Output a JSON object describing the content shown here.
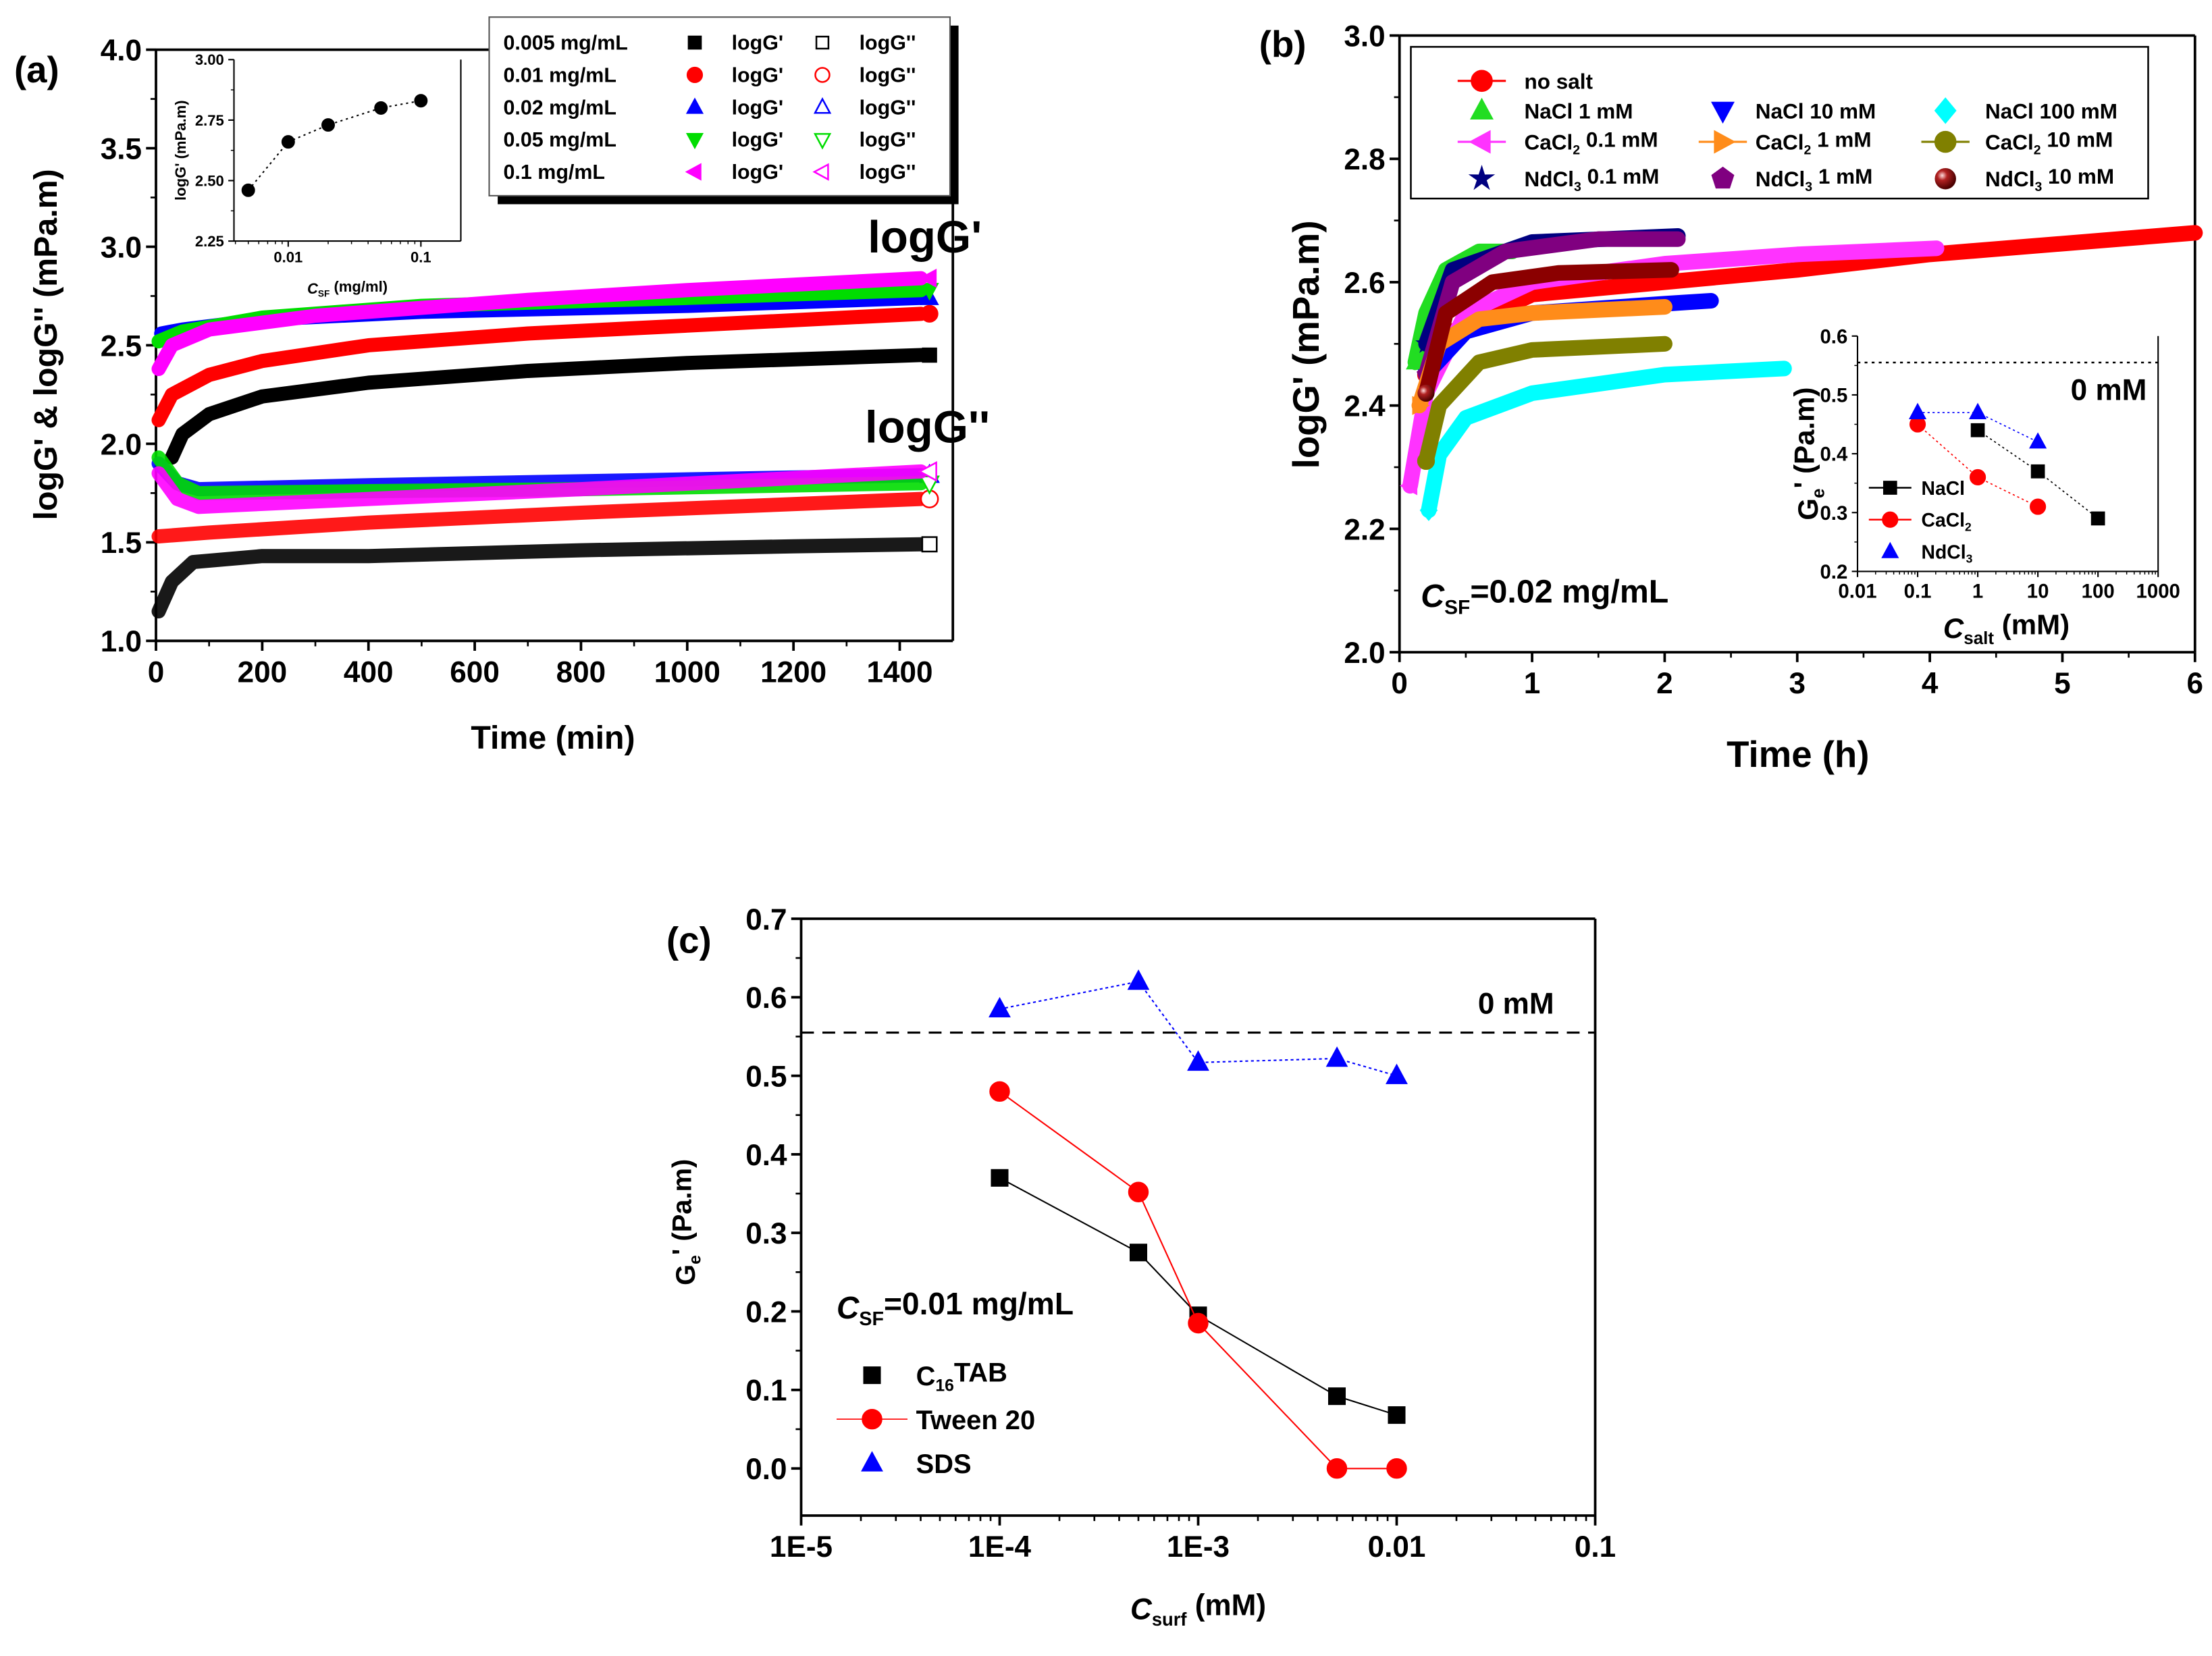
{
  "chart_data": [
    {
      "id": "a",
      "type": "line",
      "panel_label": "(a)",
      "xlabel": "Time (min)",
      "ylabel": "logG' & logG'' (mPa.m)",
      "xlim": [
        0,
        1500
      ],
      "ylim": [
        1.0,
        4.0
      ],
      "xticks": [
        0,
        200,
        400,
        600,
        800,
        1000,
        1200,
        1400
      ],
      "xtick_labels": [
        "0",
        "200",
        "400",
        "600",
        "800",
        "1000",
        "1200",
        "1400"
      ],
      "yticks": [
        1.0,
        1.5,
        2.0,
        2.5,
        3.0,
        3.5,
        4.0
      ],
      "ytick_labels": [
        "1.0",
        "1.5",
        "2.0",
        "2.5",
        "3.0",
        "3.5",
        "4.0"
      ],
      "annotations": [
        "logG'",
        "logG''"
      ],
      "legend_position": "top-right",
      "series": [
        {
          "name": "0.005 mg/mL",
          "color": "#000000",
          "marker": "square",
          "G1_label": "logG'",
          "G2_label": "logG''",
          "logG1": [
            [
              30,
              1.93
            ],
            [
              50,
              2.05
            ],
            [
              100,
              2.15
            ],
            [
              200,
              2.24
            ],
            [
              400,
              2.31
            ],
            [
              700,
              2.37
            ],
            [
              1000,
              2.41
            ],
            [
              1440,
              2.45
            ]
          ],
          "logG2": [
            [
              5,
              1.15
            ],
            [
              30,
              1.3
            ],
            [
              70,
              1.4
            ],
            [
              200,
              1.43
            ],
            [
              400,
              1.43
            ],
            [
              800,
              1.46
            ],
            [
              1200,
              1.48
            ],
            [
              1440,
              1.49
            ]
          ]
        },
        {
          "name": "0.01 mg/mL",
          "color": "#ff0000",
          "marker": "circle",
          "G1_label": "logG'",
          "G2_label": "logG''",
          "logG1": [
            [
              5,
              2.12
            ],
            [
              30,
              2.25
            ],
            [
              100,
              2.35
            ],
            [
              200,
              2.42
            ],
            [
              400,
              2.5
            ],
            [
              700,
              2.56
            ],
            [
              1000,
              2.6
            ],
            [
              1440,
              2.66
            ]
          ],
          "logG2": [
            [
              5,
              1.53
            ],
            [
              100,
              1.55
            ],
            [
              400,
              1.6
            ],
            [
              800,
              1.65
            ],
            [
              1440,
              1.72
            ]
          ]
        },
        {
          "name": "0.02 mg/mL",
          "color": "#0000ff",
          "marker": "up",
          "G1_label": "logG'",
          "G2_label": "logG''",
          "logG1": [
            [
              10,
              2.56
            ],
            [
              50,
              2.58
            ],
            [
              200,
              2.63
            ],
            [
              500,
              2.67
            ],
            [
              1000,
              2.7
            ],
            [
              1440,
              2.74
            ]
          ],
          "logG2": [
            [
              5,
              1.9
            ],
            [
              40,
              1.8
            ],
            [
              80,
              1.77
            ],
            [
              400,
              1.79
            ],
            [
              800,
              1.81
            ],
            [
              1440,
              1.84
            ]
          ]
        },
        {
          "name": "0.05 mg/mL",
          "color": "#00dd00",
          "marker": "down",
          "G1_label": "logG'",
          "G2_label": "logG''",
          "logG1": [
            [
              5,
              2.52
            ],
            [
              50,
              2.57
            ],
            [
              200,
              2.64
            ],
            [
              500,
              2.7
            ],
            [
              1000,
              2.74
            ],
            [
              1440,
              2.78
            ]
          ],
          "logG2": [
            [
              5,
              1.93
            ],
            [
              40,
              1.8
            ],
            [
              80,
              1.75
            ],
            [
              400,
              1.76
            ],
            [
              800,
              1.77
            ],
            [
              1440,
              1.8
            ]
          ]
        },
        {
          "name": "0.1 mg/mL",
          "color": "#ff00ff",
          "marker": "left",
          "G1_label": "logG'",
          "G2_label": "logG''",
          "logG1": [
            [
              5,
              2.38
            ],
            [
              30,
              2.5
            ],
            [
              100,
              2.58
            ],
            [
              300,
              2.65
            ],
            [
              700,
              2.73
            ],
            [
              1000,
              2.78
            ],
            [
              1440,
              2.84
            ]
          ],
          "logG2": [
            [
              5,
              1.85
            ],
            [
              40,
              1.72
            ],
            [
              80,
              1.68
            ],
            [
              400,
              1.72
            ],
            [
              800,
              1.77
            ],
            [
              1440,
              1.86
            ]
          ]
        }
      ]
    },
    {
      "id": "a-inset",
      "type": "scatter",
      "xlabel": {
        "base": "C",
        "italic": true,
        "sub": "SF",
        "rest": " (mg/ml)"
      },
      "ylabel": "logG' (mPa.m)",
      "xscale": "log",
      "xlim": [
        0.0039,
        0.2
      ],
      "ylim": [
        2.25,
        3.0
      ],
      "xticks": [
        0.01,
        0.1
      ],
      "xtick_labels": [
        "0.01",
        "0.1"
      ],
      "yticks": [
        2.25,
        2.5,
        2.75,
        3.0
      ],
      "ytick_labels": [
        "2.25",
        "2.50",
        "2.75",
        "3.00"
      ],
      "x": [
        0.005,
        0.01,
        0.02,
        0.05,
        0.1
      ],
      "y": [
        2.46,
        2.66,
        2.73,
        2.8,
        2.83
      ],
      "color": "#000000"
    },
    {
      "id": "b",
      "type": "line",
      "panel_label": "(b)",
      "xlabel": "Time (h)",
      "ylabel": "logG' (mPa.m)",
      "xlim": [
        0,
        6
      ],
      "ylim": [
        2.0,
        3.0
      ],
      "xticks": [
        0,
        1,
        2,
        3,
        4,
        5,
        6
      ],
      "xtick_labels": [
        "0",
        "1",
        "2",
        "3",
        "4",
        "5",
        "6"
      ],
      "yticks": [
        2.0,
        2.2,
        2.4,
        2.6,
        2.8,
        3.0
      ],
      "ytick_labels": [
        "2.0",
        "2.2",
        "2.4",
        "2.6",
        "2.8",
        "3.0"
      ],
      "annotation": {
        "base": "C",
        "italic": true,
        "sub": "SF",
        "rest": "=0.02 mg/mL"
      },
      "legend_position": "top",
      "series": [
        {
          "name": {
            "base": "no salt"
          },
          "color": "#ff0000",
          "marker": "circle",
          "line": true,
          "points": [
            [
              0.2,
              2.45
            ],
            [
              0.4,
              2.52
            ],
            [
              1,
              2.58
            ],
            [
              2,
              2.6
            ],
            [
              3,
              2.62
            ],
            [
              4,
              2.645
            ],
            [
              6,
              2.68
            ]
          ]
        },
        {
          "name": {
            "base": "NaCl 1 mM"
          },
          "color": "#22dd22",
          "marker": "up",
          "line": false,
          "points": [
            [
              0.12,
              2.47
            ],
            [
              0.2,
              2.55
            ],
            [
              0.35,
              2.62
            ],
            [
              0.6,
              2.65
            ],
            [
              0.85,
              2.65
            ]
          ]
        },
        {
          "name": {
            "base": "NaCl 10 mM"
          },
          "color": "#0000ff",
          "marker": "down",
          "line": false,
          "points": [
            [
              0.2,
              2.45
            ],
            [
              0.5,
              2.52
            ],
            [
              1,
              2.55
            ],
            [
              2,
              2.565
            ],
            [
              2.35,
              2.57
            ]
          ]
        },
        {
          "name": {
            "base": "NaCl 100 mM"
          },
          "color": "#00ffff",
          "marker": "diamond",
          "line": false,
          "points": [
            [
              0.22,
              2.23
            ],
            [
              0.3,
              2.32
            ],
            [
              0.5,
              2.38
            ],
            [
              1,
              2.42
            ],
            [
              2,
              2.45
            ],
            [
              2.9,
              2.46
            ]
          ]
        },
        {
          "name": {
            "base": "CaCl",
            "sub": "2",
            "rest": " 0.1 mM"
          },
          "color": "#ff33ff",
          "marker": "left",
          "line": true,
          "points": [
            [
              0.08,
              2.27
            ],
            [
              0.2,
              2.42
            ],
            [
              0.5,
              2.55
            ],
            [
              1,
              2.6
            ],
            [
              2,
              2.63
            ],
            [
              3,
              2.645
            ],
            [
              4.05,
              2.655
            ]
          ]
        },
        {
          "name": {
            "base": "CaCl",
            "sub": "2",
            "rest": " 1 mM"
          },
          "color": "#ff8c1a",
          "marker": "right",
          "line": true,
          "points": [
            [
              0.15,
              2.4
            ],
            [
              0.3,
              2.5
            ],
            [
              0.6,
              2.54
            ],
            [
              1,
              2.55
            ],
            [
              2,
              2.56
            ]
          ]
        },
        {
          "name": {
            "base": "CaCl",
            "sub": "2",
            "rest": " 10 mM"
          },
          "color": "#808000",
          "marker": "circle",
          "line": true,
          "points": [
            [
              0.2,
              2.31
            ],
            [
              0.3,
              2.4
            ],
            [
              0.6,
              2.47
            ],
            [
              1,
              2.49
            ],
            [
              2,
              2.5
            ]
          ]
        },
        {
          "name": {
            "base": "NdCl",
            "sub": "3",
            "rest": " 0.1 mM"
          },
          "color": "#000080",
          "marker": "star",
          "line": false,
          "points": [
            [
              0.2,
              2.5
            ],
            [
              0.4,
              2.62
            ],
            [
              1,
              2.665
            ],
            [
              2.1,
              2.675
            ]
          ]
        },
        {
          "name": {
            "base": "NdCl",
            "sub": "3",
            "rest": " 1 mM"
          },
          "color": "#800080",
          "marker": "pentagon",
          "line": false,
          "points": [
            [
              0.2,
              2.45
            ],
            [
              0.4,
              2.6
            ],
            [
              0.8,
              2.65
            ],
            [
              1.5,
              2.67
            ],
            [
              2.1,
              2.67
            ]
          ]
        },
        {
          "name": {
            "base": "NdCl",
            "sub": "3",
            "rest": " 10 mM"
          },
          "color": "#8b0000",
          "marker": "sphere",
          "line": false,
          "points": [
            [
              0.2,
              2.42
            ],
            [
              0.35,
              2.55
            ],
            [
              0.7,
              2.6
            ],
            [
              1.2,
              2.615
            ],
            [
              2.05,
              2.62
            ]
          ]
        }
      ]
    },
    {
      "id": "b-inset",
      "type": "scatter",
      "xlabel": {
        "base": "C",
        "italic": true,
        "sub": "salt",
        "rest": " (mM)"
      },
      "ylabel": {
        "base": "G",
        "sub": "e",
        "rest": "' (Pa.m)"
      },
      "xscale": "log",
      "xlim": [
        0.01,
        1000
      ],
      "ylim": [
        0.2,
        0.6
      ],
      "xticks": [
        0.01,
        0.1,
        1,
        10,
        100,
        1000
      ],
      "xtick_labels": [
        "0.01",
        "0.1",
        "1",
        "10",
        "100",
        "1000"
      ],
      "yticks": [
        0.2,
        0.3,
        0.4,
        0.5,
        0.6
      ],
      "ytick_labels": [
        "0.2",
        "0.3",
        "0.4",
        "0.5",
        "0.6"
      ],
      "reference_line": {
        "y": 0.555,
        "label": "0 mM"
      },
      "series": [
        {
          "name": {
            "base": "NaCl"
          },
          "color": "#000000",
          "marker": "square",
          "x": [
            1,
            10,
            100
          ],
          "y": [
            0.44,
            0.37,
            0.29
          ]
        },
        {
          "name": {
            "base": "CaCl",
            "sub": "2"
          },
          "color": "#ff0000",
          "marker": "circle",
          "x": [
            0.1,
            1,
            10
          ],
          "y": [
            0.45,
            0.36,
            0.31
          ]
        },
        {
          "name": {
            "base": "NdCl",
            "sub": "3"
          },
          "color": "#0000ff",
          "marker": "up",
          "x": [
            0.1,
            1,
            10
          ],
          "y": [
            0.47,
            0.47,
            0.42
          ]
        }
      ]
    },
    {
      "id": "c",
      "type": "line",
      "panel_label": "(c)",
      "xlabel": {
        "base": "C",
        "italic": true,
        "sub": "surf",
        "rest": " (mM)"
      },
      "ylabel": {
        "base": "G",
        "sub": "e",
        "rest": "' (Pa.m)"
      },
      "xscale": "log",
      "xlim": [
        1e-05,
        0.1
      ],
      "ylim": [
        -0.06,
        0.7
      ],
      "xticks": [
        1e-05,
        0.0001,
        0.001,
        0.01,
        0.1
      ],
      "xtick_labels": [
        "1E-5",
        "1E-4",
        "1E-3",
        "0.01",
        "0.1"
      ],
      "yticks": [
        0,
        0.1,
        0.2,
        0.3,
        0.4,
        0.5,
        0.6,
        0.7
      ],
      "ytick_labels": [
        "0.0",
        "0.1",
        "0.2",
        "0.3",
        "0.4",
        "0.5",
        "0.6",
        "0.7"
      ],
      "reference_line": {
        "y": 0.555,
        "label": "0 mM"
      },
      "annotation": {
        "base": "C",
        "italic": true,
        "sub": "SF",
        "rest": "=0.01 mg/mL"
      },
      "legend_position": "bottom-left",
      "series": [
        {
          "name": {
            "base": "C",
            "sub": "16",
            "rest": "TAB"
          },
          "color": "#000000",
          "marker": "square",
          "x": [
            0.0001,
            0.0005,
            0.001,
            0.005,
            0.01
          ],
          "y": [
            0.37,
            0.275,
            0.195,
            0.092,
            0.068
          ]
        },
        {
          "name": {
            "base": "Tween 20"
          },
          "color": "#ff0000",
          "marker": "circle",
          "x": [
            0.0001,
            0.0005,
            0.001,
            0.005,
            0.01
          ],
          "y": [
            0.48,
            0.352,
            0.185,
            0.0,
            0.0
          ]
        },
        {
          "name": {
            "base": "SDS"
          },
          "color": "#0000ff",
          "marker": "up",
          "x": [
            0.0001,
            0.0005,
            0.001,
            0.005,
            0.01
          ],
          "y": [
            0.585,
            0.62,
            0.517,
            0.522,
            0.5
          ]
        }
      ]
    }
  ]
}
